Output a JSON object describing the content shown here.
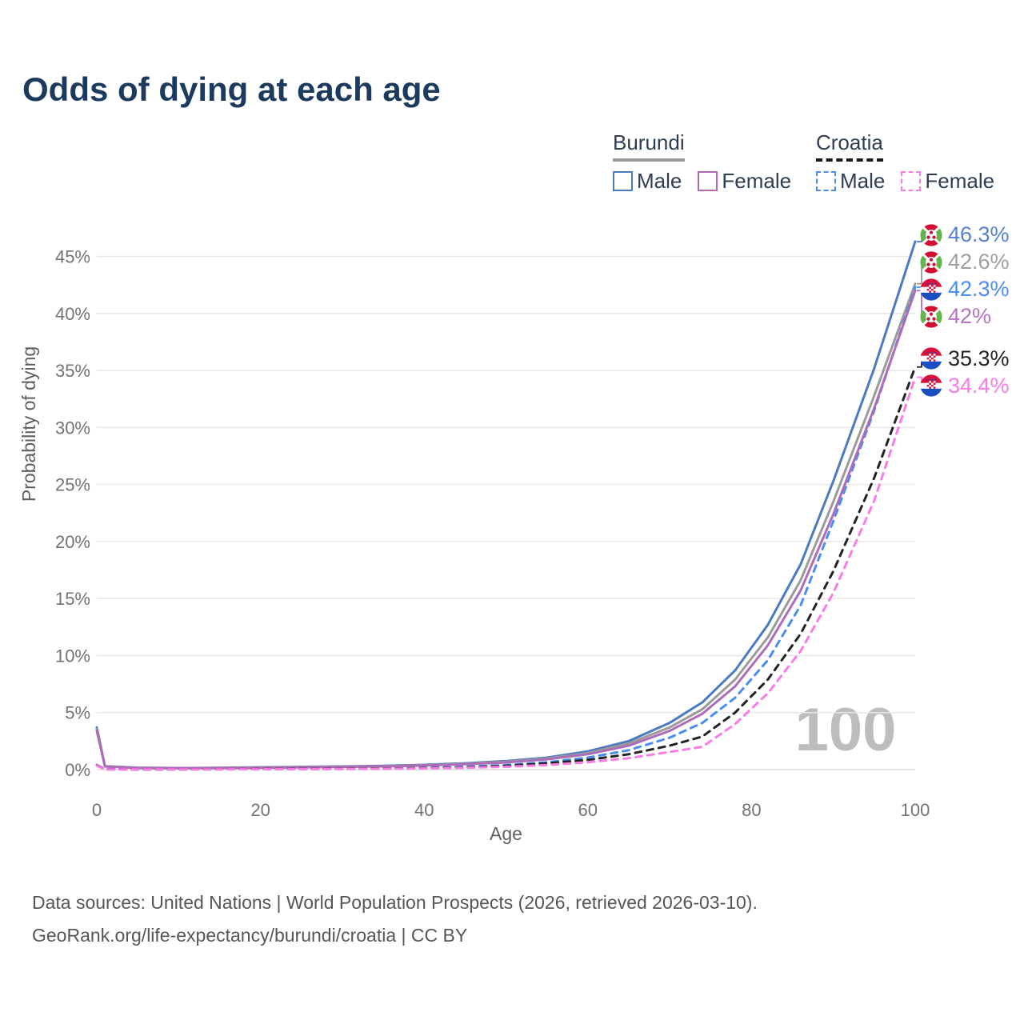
{
  "header": {
    "title": "Odds of dying at each age"
  },
  "legend": {
    "groups": [
      {
        "country": "Burundi",
        "line_style": "solid",
        "line_color": "#9a9a9a",
        "items": [
          {
            "label": "Male",
            "color": "#4a7ac2",
            "dashed": false
          },
          {
            "label": "Female",
            "color": "#b16ab1",
            "dashed": false
          }
        ]
      },
      {
        "country": "Croatia",
        "line_style": "dashed",
        "line_color": "#1a1a1a",
        "items": [
          {
            "label": "Male",
            "color": "#4a8df0",
            "dashed": true
          },
          {
            "label": "Female",
            "color": "#fb7be6",
            "dashed": true
          }
        ]
      }
    ]
  },
  "footer": {
    "line1": "Data sources: United Nations | World Population Prospects (2026, retrieved 2026-03-10).",
    "line2": "GeoRank.org/life-expectancy/burundi/croatia | CC BY"
  },
  "chart_data": {
    "type": "line",
    "xlabel": "Age",
    "ylabel": "Probability of dying",
    "xlim": [
      0,
      100
    ],
    "ylim_pct": [
      0,
      47
    ],
    "x_ticks": [
      0,
      20,
      40,
      60,
      80,
      100
    ],
    "y_ticks_pct": [
      0,
      5,
      10,
      15,
      20,
      25,
      30,
      35,
      40,
      45
    ],
    "grid": "horizontal",
    "watermark": "100",
    "x": [
      0,
      1,
      5,
      10,
      15,
      20,
      25,
      30,
      35,
      40,
      45,
      50,
      55,
      60,
      65,
      70,
      74,
      78,
      82,
      86,
      90,
      95,
      100
    ],
    "series": [
      {
        "id": "burundi-male",
        "name": "Burundi Male",
        "country": "burundi",
        "sex": "male",
        "color": "#4a7ac2",
        "label_color": "#5380cf",
        "dashed": false,
        "end_label": "46.3%",
        "y": [
          3.7,
          0.3,
          0.17,
          0.14,
          0.16,
          0.2,
          0.24,
          0.28,
          0.33,
          0.42,
          0.55,
          0.75,
          1.05,
          1.6,
          2.5,
          4.1,
          5.9,
          8.7,
          12.7,
          18.0,
          25.3,
          35.2,
          46.3
        ]
      },
      {
        "id": "burundi-both",
        "name": "Burundi (both sexes)",
        "country": "burundi",
        "sex": "both",
        "color": "#9a9a9a",
        "label_color": "#9e9e9e",
        "dashed": false,
        "end_label": "42.6%",
        "y": [
          3.55,
          0.28,
          0.16,
          0.13,
          0.15,
          0.18,
          0.22,
          0.26,
          0.3,
          0.39,
          0.51,
          0.69,
          0.97,
          1.45,
          2.3,
          3.7,
          5.3,
          7.9,
          11.6,
          16.6,
          23.5,
          32.8,
          42.6
        ]
      },
      {
        "id": "croatia-male",
        "name": "Croatia Male",
        "country": "croatia",
        "sex": "male",
        "color": "#4a8df0",
        "label_color": "#4a8df0",
        "dashed": true,
        "end_label": "42.3%",
        "y": [
          0.4,
          0.03,
          0.02,
          0.02,
          0.03,
          0.06,
          0.07,
          0.08,
          0.1,
          0.15,
          0.25,
          0.4,
          0.65,
          1.05,
          1.7,
          2.8,
          4.1,
          6.3,
          9.6,
          14.4,
          21.8,
          31.5,
          42.3
        ]
      },
      {
        "id": "burundi-female",
        "name": "Burundi Female",
        "country": "burundi",
        "sex": "female",
        "color": "#ae6cb8",
        "label_color": "#b474c0",
        "dashed": false,
        "end_label": "42%",
        "y": [
          3.4,
          0.27,
          0.15,
          0.13,
          0.14,
          0.17,
          0.2,
          0.24,
          0.28,
          0.36,
          0.47,
          0.63,
          0.9,
          1.35,
          2.1,
          3.4,
          4.9,
          7.3,
          10.9,
          15.7,
          22.4,
          31.7,
          42.0
        ]
      },
      {
        "id": "croatia-both",
        "name": "Croatia (both sexes)",
        "country": "croatia",
        "sex": "both",
        "color": "#232323",
        "label_color": "#232323",
        "dashed": true,
        "end_label": "35.3%",
        "y": [
          0.38,
          0.03,
          0.02,
          0.02,
          0.03,
          0.05,
          0.06,
          0.07,
          0.09,
          0.13,
          0.2,
          0.33,
          0.55,
          0.85,
          1.35,
          2.1,
          2.9,
          5.0,
          7.9,
          11.9,
          17.4,
          25.6,
          35.3
        ]
      },
      {
        "id": "croatia-female",
        "name": "Croatia Female",
        "country": "croatia",
        "sex": "female",
        "color": "#fb7be6",
        "label_color": "#fb7be6",
        "dashed": true,
        "end_label": "34.4%",
        "y": [
          0.35,
          0.02,
          0.015,
          0.015,
          0.02,
          0.03,
          0.04,
          0.05,
          0.07,
          0.1,
          0.16,
          0.25,
          0.4,
          0.65,
          1.0,
          1.55,
          2.0,
          4.0,
          6.7,
          10.4,
          15.5,
          23.6,
          34.4
        ]
      }
    ]
  }
}
